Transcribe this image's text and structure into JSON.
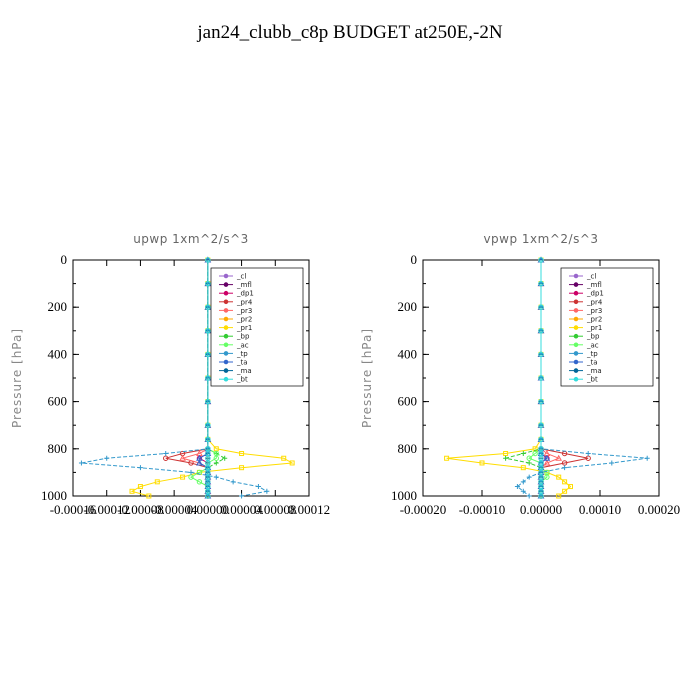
{
  "title": "jan24_clubb_c8p  BUDGET at250E,-2N",
  "chart_data": [
    {
      "type": "line",
      "title": "upwp   1xm^2/s^3",
      "ylabel": "Pressure [hPa]",
      "ylim": [
        1000,
        0
      ],
      "xlim": [
        -0.00016,
        0.00012
      ],
      "yticks": [
        0,
        200,
        400,
        600,
        800,
        1000
      ],
      "xtick_labels": [
        "-0.00016",
        "-0.00012",
        "-0.00008",
        "-0.00004",
        "0.00000",
        "0.00004",
        "0.00008",
        "0.00012"
      ],
      "xticks": [
        -0.00016,
        -0.00012,
        -8e-05,
        -4e-05,
        0.0,
        4e-05,
        8e-05,
        0.00012
      ],
      "legend_position": "top-right",
      "levels": [
        0,
        100,
        200,
        300,
        400,
        500,
        600,
        700,
        760,
        800,
        820,
        840,
        860,
        880,
        900,
        920,
        940,
        960,
        980,
        1000
      ],
      "series": [
        {
          "name": "_cl",
          "color": "#9966cc",
          "marker": "circle",
          "values": [
            0,
            0,
            0,
            0,
            0,
            0,
            0,
            0,
            0,
            0,
            0,
            0,
            0,
            0,
            0,
            0,
            0,
            0,
            0,
            0
          ]
        },
        {
          "name": "_mfl",
          "color": "#660066",
          "marker": "plus",
          "values": [
            0,
            0,
            0,
            0,
            0,
            0,
            0,
            0,
            0,
            0,
            0,
            0,
            0,
            0,
            0,
            0,
            0,
            0,
            0,
            0
          ]
        },
        {
          "name": "_dp1",
          "color": "#cc0066",
          "marker": "circle",
          "values": [
            0,
            0,
            0,
            0,
            0,
            0,
            0,
            0,
            0,
            0,
            0.0,
            -1e-05,
            0,
            0,
            0,
            0,
            0,
            0,
            0,
            0
          ]
        },
        {
          "name": "_pr4",
          "color": "#cc3333",
          "marker": "circle",
          "values": [
            0,
            0,
            0,
            0,
            0,
            0,
            0,
            0,
            0,
            0,
            -3e-05,
            -5e-05,
            -2e-05,
            0,
            0,
            0,
            0,
            0,
            0,
            0
          ]
        },
        {
          "name": "_pr3",
          "color": "#ff6666",
          "marker": "triangle",
          "values": [
            0,
            0,
            0,
            0,
            0,
            0,
            0,
            0,
            0,
            0,
            -1e-05,
            -3e-05,
            -1e-05,
            0,
            0,
            0,
            0,
            0,
            0,
            0
          ]
        },
        {
          "name": "_pr2",
          "color": "#ffaa00",
          "marker": "plus",
          "values": [
            0,
            0,
            0,
            0,
            0,
            0,
            0,
            0,
            0,
            0,
            0,
            0,
            0,
            0,
            0,
            0,
            0,
            0,
            0,
            0
          ]
        },
        {
          "name": "_pr1",
          "color": "#ffdd00",
          "marker": "square",
          "values": [
            0,
            0,
            0,
            0,
            0,
            0,
            0,
            0,
            0,
            1e-05,
            4e-05,
            9e-05,
            0.0001,
            4e-05,
            -1e-05,
            -3e-05,
            -6e-05,
            -8e-05,
            -9e-05,
            -7e-05
          ]
        },
        {
          "name": "_bp",
          "color": "#33cc33",
          "marker": "plus",
          "values": [
            0,
            0,
            0,
            0,
            0,
            0,
            0,
            0,
            0,
            0,
            1e-05,
            2e-05,
            1e-05,
            0,
            0,
            0,
            0,
            0,
            0,
            0
          ]
        },
        {
          "name": "_ac",
          "color": "#66ff66",
          "marker": "circle",
          "values": [
            0,
            0,
            0,
            0,
            0,
            0,
            0,
            0,
            0,
            0,
            1e-05,
            1e-05,
            0,
            0,
            -1e-05,
            -2e-05,
            -1e-05,
            0,
            0,
            0
          ]
        },
        {
          "name": "_tp",
          "color": "#3399cc",
          "marker": "plus",
          "values": [
            0,
            0,
            0,
            0,
            0,
            0,
            0,
            0,
            0,
            0,
            -5e-05,
            -0.00012,
            -0.00015,
            -8e-05,
            -2e-05,
            1e-05,
            3e-05,
            6e-05,
            7e-05,
            4e-05
          ]
        },
        {
          "name": "_ta",
          "color": "#3366cc",
          "marker": "triangle",
          "values": [
            0,
            0,
            0,
            0,
            0,
            0,
            0,
            0,
            0,
            0,
            0,
            -1e-05,
            -1e-05,
            0,
            0,
            0,
            0,
            0,
            0,
            0
          ]
        },
        {
          "name": "_ma",
          "color": "#006699",
          "marker": "dash",
          "values": [
            0,
            0,
            0,
            0,
            0,
            0,
            0,
            0,
            0,
            0,
            0,
            0,
            0,
            0,
            0,
            0,
            0,
            0,
            0,
            0
          ]
        },
        {
          "name": "_bt",
          "color": "#33dddd",
          "marker": "circle",
          "values": [
            0,
            0,
            0,
            0,
            0,
            0,
            0,
            0,
            0,
            0,
            0,
            0,
            0,
            0,
            0,
            0,
            0,
            0,
            0,
            0
          ]
        }
      ]
    },
    {
      "type": "line",
      "title": "vpwp   1xm^2/s^3",
      "ylabel": "Pressure [hPa]",
      "ylim": [
        1000,
        0
      ],
      "xlim": [
        -0.0002,
        0.0002
      ],
      "yticks": [
        0,
        200,
        400,
        600,
        800,
        1000
      ],
      "xtick_labels": [
        "-0.00020",
        "-0.00010",
        "0.00000",
        "0.00010",
        "0.00020"
      ],
      "xticks": [
        -0.0002,
        -0.0001,
        0.0,
        0.0001,
        0.0002
      ],
      "legend_position": "top-right",
      "levels": [
        0,
        100,
        200,
        300,
        400,
        500,
        600,
        700,
        760,
        800,
        820,
        840,
        860,
        880,
        900,
        920,
        940,
        960,
        980,
        1000
      ],
      "series": [
        {
          "name": "_cl",
          "color": "#9966cc",
          "marker": "circle",
          "values": [
            0,
            0,
            0,
            0,
            0,
            0,
            0,
            0,
            0,
            0,
            0,
            0,
            0,
            0,
            0,
            0,
            0,
            0,
            0,
            0
          ]
        },
        {
          "name": "_mfl",
          "color": "#660066",
          "marker": "plus",
          "values": [
            0,
            0,
            0,
            0,
            0,
            0,
            0,
            0,
            0,
            0,
            0,
            0,
            0,
            0,
            0,
            0,
            0,
            0,
            0,
            0
          ]
        },
        {
          "name": "_dp1",
          "color": "#cc0066",
          "marker": "circle",
          "values": [
            0,
            0,
            0,
            0,
            0,
            0,
            0,
            0,
            0,
            0,
            0,
            1e-05,
            0,
            0,
            0,
            0,
            0,
            0,
            0,
            0
          ]
        },
        {
          "name": "_pr4",
          "color": "#cc3333",
          "marker": "circle",
          "values": [
            0,
            0,
            0,
            0,
            0,
            0,
            0,
            0,
            0,
            0,
            4e-05,
            8e-05,
            4e-05,
            0,
            0,
            0,
            0,
            0,
            0,
            0
          ]
        },
        {
          "name": "_pr3",
          "color": "#ff6666",
          "marker": "triangle",
          "values": [
            0,
            0,
            0,
            0,
            0,
            0,
            0,
            0,
            0,
            0,
            1e-05,
            3e-05,
            1e-05,
            0,
            0,
            0,
            0,
            0,
            0,
            0
          ]
        },
        {
          "name": "_pr2",
          "color": "#ffaa00",
          "marker": "plus",
          "values": [
            0,
            0,
            0,
            0,
            0,
            0,
            0,
            0,
            0,
            0,
            0,
            0,
            0,
            0,
            0,
            0,
            0,
            0,
            0,
            0
          ]
        },
        {
          "name": "_pr1",
          "color": "#ffdd00",
          "marker": "square",
          "values": [
            0,
            0,
            0,
            0,
            0,
            0,
            0,
            0,
            0,
            -1e-05,
            -6e-05,
            -0.00016,
            -0.0001,
            -3e-05,
            1e-05,
            3e-05,
            4e-05,
            5e-05,
            4e-05,
            3e-05
          ]
        },
        {
          "name": "_bp",
          "color": "#33cc33",
          "marker": "plus",
          "values": [
            0,
            0,
            0,
            0,
            0,
            0,
            0,
            0,
            0,
            0,
            -3e-05,
            -6e-05,
            -2e-05,
            0,
            0,
            0,
            0,
            0,
            0,
            0
          ]
        },
        {
          "name": "_ac",
          "color": "#66ff66",
          "marker": "circle",
          "values": [
            0,
            0,
            0,
            0,
            0,
            0,
            0,
            0,
            0,
            0,
            -1e-05,
            -2e-05,
            0,
            0,
            1e-05,
            1e-05,
            0,
            0,
            0,
            0
          ]
        },
        {
          "name": "_tp",
          "color": "#3399cc",
          "marker": "plus",
          "values": [
            0,
            0,
            0,
            0,
            0,
            0,
            0,
            0,
            0,
            0,
            8e-05,
            0.00018,
            0.00012,
            4e-05,
            0,
            -2e-05,
            -3e-05,
            -4e-05,
            -3e-05,
            -2e-05
          ]
        },
        {
          "name": "_ta",
          "color": "#3366cc",
          "marker": "triangle",
          "values": [
            0,
            0,
            0,
            0,
            0,
            0,
            0,
            0,
            0,
            0,
            0,
            1e-05,
            0,
            0,
            0,
            0,
            0,
            0,
            0,
            0
          ]
        },
        {
          "name": "_ma",
          "color": "#006699",
          "marker": "dash",
          "values": [
            0,
            0,
            0,
            0,
            0,
            0,
            0,
            0,
            0,
            0,
            0,
            0,
            0,
            0,
            0,
            0,
            0,
            0,
            0,
            0
          ]
        },
        {
          "name": "_bt",
          "color": "#33dddd",
          "marker": "circle",
          "values": [
            0,
            0,
            0,
            0,
            0,
            0,
            0,
            0,
            0,
            0,
            0,
            0,
            0,
            0,
            0,
            0,
            0,
            0,
            0,
            0
          ]
        }
      ]
    }
  ]
}
